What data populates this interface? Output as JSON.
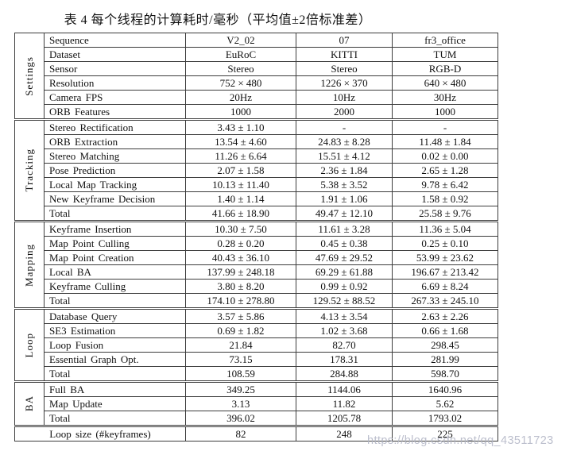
{
  "title": "表 4 每个线程的计算耗时/毫秒（平均值±2倍标准差）",
  "watermark": "https://blog.csdn.net/qq_43511723",
  "sections": [
    {
      "label": "Settings",
      "rows": [
        {
          "name": "Sequence",
          "values": [
            "V2_02",
            "07",
            "fr3_office"
          ]
        },
        {
          "name": "Dataset",
          "values": [
            "EuRoC",
            "KITTI",
            "TUM"
          ]
        },
        {
          "name": "Sensor",
          "values": [
            "Stereo",
            "Stereo",
            "RGB-D"
          ]
        },
        {
          "name": "Resolution",
          "values": [
            "752 × 480",
            "1226 × 370",
            "640 × 480"
          ]
        },
        {
          "name": "Camera FPS",
          "values": [
            "20Hz",
            "10Hz",
            "30Hz"
          ]
        },
        {
          "name": "ORB Features",
          "values": [
            "1000",
            "2000",
            "1000"
          ]
        }
      ]
    },
    {
      "label": "Tracking",
      "rows": [
        {
          "name": "Stereo Rectification",
          "values": [
            "3.43 ± 1.10",
            "-",
            "-"
          ]
        },
        {
          "name": "ORB Extraction",
          "values": [
            "13.54 ± 4.60",
            "24.83 ± 8.28",
            "11.48 ± 1.84"
          ]
        },
        {
          "name": "Stereo Matching",
          "values": [
            "11.26 ± 6.64",
            "15.51 ± 4.12",
            "0.02 ± 0.00"
          ]
        },
        {
          "name": "Pose Prediction",
          "values": [
            "2.07 ± 1.58",
            "2.36 ± 1.84",
            "2.65 ± 1.28"
          ]
        },
        {
          "name": "Local Map Tracking",
          "values": [
            "10.13 ± 11.40",
            "5.38 ± 3.52",
            "9.78 ± 6.42"
          ]
        },
        {
          "name": "New Keyframe Decision",
          "values": [
            "1.40 ± 1.14",
            "1.91 ± 1.06",
            "1.58 ± 0.92"
          ]
        },
        {
          "name": "Total",
          "values": [
            "41.66 ± 18.90",
            "49.47 ± 12.10",
            "25.58 ± 9.76"
          ]
        }
      ]
    },
    {
      "label": "Mapping",
      "rows": [
        {
          "name": "Keyframe Insertion",
          "values": [
            "10.30 ± 7.50",
            "11.61 ± 3.28",
            "11.36 ± 5.04"
          ]
        },
        {
          "name": "Map Point Culling",
          "values": [
            "0.28 ± 0.20",
            "0.45 ± 0.38",
            "0.25 ± 0.10"
          ]
        },
        {
          "name": "Map Point Creation",
          "values": [
            "40.43 ± 36.10",
            "47.69 ± 29.52",
            "53.99 ± 23.62"
          ]
        },
        {
          "name": "Local BA",
          "values": [
            "137.99 ± 248.18",
            "69.29 ± 61.88",
            "196.67 ± 213.42"
          ]
        },
        {
          "name": "Keyframe Culling",
          "values": [
            "3.80 ± 8.20",
            "0.99 ± 0.92",
            "6.69 ± 8.24"
          ]
        },
        {
          "name": "Total",
          "values": [
            "174.10 ± 278.80",
            "129.52 ± 88.52",
            "267.33 ± 245.10"
          ]
        }
      ]
    },
    {
      "label": "Loop",
      "rows": [
        {
          "name": "Database Query",
          "values": [
            "3.57 ± 5.86",
            "4.13 ± 3.54",
            "2.63 ± 2.26"
          ]
        },
        {
          "name": "SE3 Estimation",
          "values": [
            "0.69 ± 1.82",
            "1.02 ± 3.68",
            "0.66 ± 1.68"
          ]
        },
        {
          "name": "Loop Fusion",
          "values": [
            "21.84",
            "82.70",
            "298.45"
          ]
        },
        {
          "name": "Essential Graph Opt.",
          "values": [
            "73.15",
            "178.31",
            "281.99"
          ]
        },
        {
          "name": "Total",
          "values": [
            "108.59",
            "284.88",
            "598.70"
          ]
        }
      ]
    },
    {
      "label": "BA",
      "rows": [
        {
          "name": "Full BA",
          "values": [
            "349.25",
            "1144.06",
            "1640.96"
          ]
        },
        {
          "name": "Map Update",
          "values": [
            "3.13",
            "11.82",
            "5.62"
          ]
        },
        {
          "name": "Total",
          "values": [
            "396.02",
            "1205.78",
            "1793.02"
          ]
        }
      ]
    }
  ],
  "footer_row": {
    "name": "Loop size (#keyframes)",
    "values": [
      "82",
      "248",
      "225"
    ]
  }
}
